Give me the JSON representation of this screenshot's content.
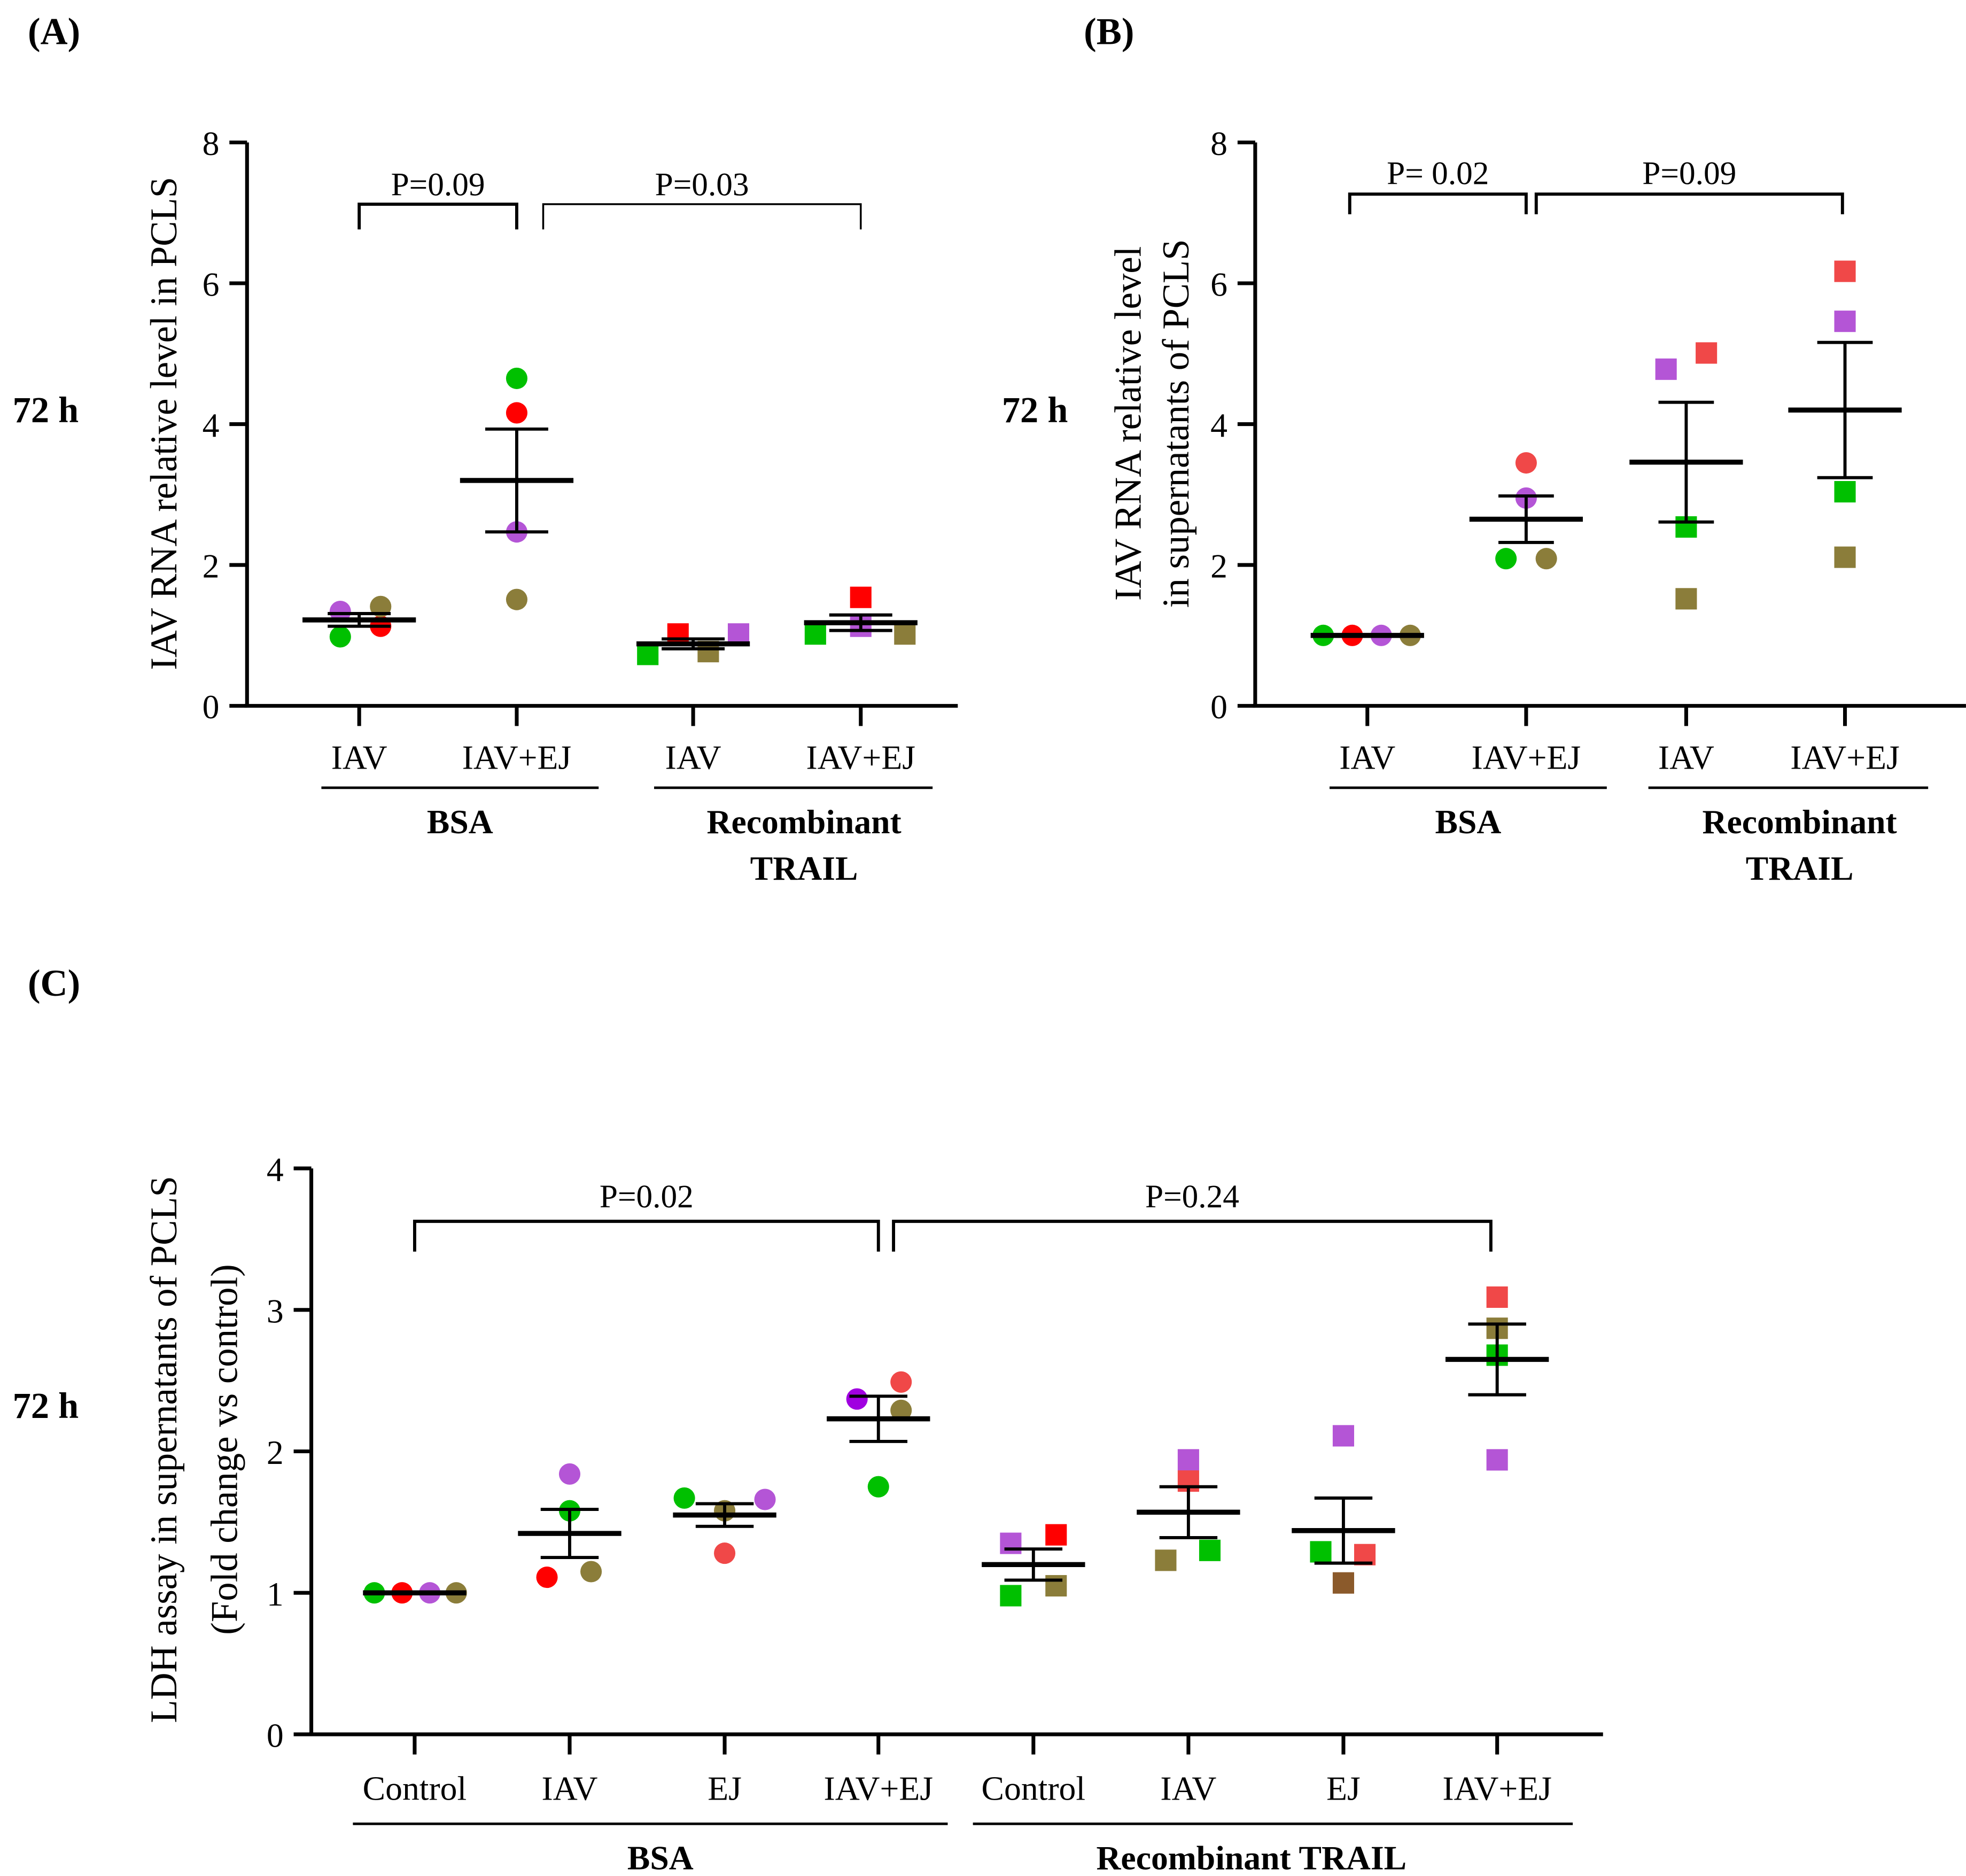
{
  "chart_data": [
    {
      "type": "scatter",
      "panel_label": "(A)",
      "time_label": "72 h",
      "ylabel": [
        "IAV RNA relative level in PCLS"
      ],
      "ylim": [
        0,
        8
      ],
      "yticks": [
        "0",
        "2",
        "4",
        "6",
        "8"
      ],
      "categories": [
        "IAV",
        "IAV+EJ",
        "IAV",
        "IAV+EJ"
      ],
      "treatment_groups": [
        {
          "label": [
            "BSA"
          ],
          "categories": [
            0,
            1
          ]
        },
        {
          "label": [
            "Recombinant",
            "TRAIL"
          ],
          "categories": [
            2,
            3
          ]
        }
      ],
      "comparisons": [
        {
          "label": "P=0.09",
          "from": 0,
          "to": 1
        },
        {
          "label": "P=0.03",
          "from": 1,
          "to": 3
        }
      ],
      "groups": [
        {
          "mean": 1.22,
          "sem": 0.09,
          "marker": "circle",
          "points": [
            {
              "value": 1.34,
              "color": "#b455d6"
            },
            {
              "value": 0.98,
              "color": "#00c000"
            },
            {
              "value": 1.13,
              "color": "#ff0000"
            },
            {
              "value": 1.41,
              "color": "#8b7d3a"
            }
          ]
        },
        {
          "mean": 3.2,
          "sem": 0.73,
          "marker": "circle",
          "points": [
            {
              "value": 4.65,
              "color": "#00c000"
            },
            {
              "value": 4.16,
              "color": "#ff0000"
            },
            {
              "value": 2.47,
              "color": "#b455d6"
            },
            {
              "value": 1.51,
              "color": "#8b7d3a"
            }
          ]
        },
        {
          "mean": 0.88,
          "sem": 0.07,
          "marker": "square",
          "points": [
            {
              "value": 0.73,
              "color": "#00c000"
            },
            {
              "value": 1.02,
              "color": "#ff0000"
            },
            {
              "value": 0.77,
              "color": "#8b7d3a"
            },
            {
              "value": 1.02,
              "color": "#b455d6"
            }
          ]
        },
        {
          "mean": 1.18,
          "sem": 0.11,
          "marker": "square",
          "points": [
            {
              "value": 1.02,
              "color": "#00c000"
            },
            {
              "value": 1.54,
              "color": "#ff0000"
            },
            {
              "value": 1.13,
              "color": "#b455d6"
            },
            {
              "value": 1.02,
              "color": "#8b7d3a"
            }
          ]
        }
      ]
    },
    {
      "type": "scatter",
      "panel_label": "(B)",
      "time_label": "72 h",
      "ylabel": [
        "IAV RNA relative level",
        "in supernatants of PCLS"
      ],
      "ylim": [
        0,
        8
      ],
      "yticks": [
        "0",
        "2",
        "4",
        "6",
        "8"
      ],
      "categories": [
        "IAV",
        "IAV+EJ",
        "IAV",
        "IAV+EJ"
      ],
      "treatment_groups": [
        {
          "label": [
            "BSA"
          ],
          "categories": [
            0,
            1
          ]
        },
        {
          "label": [
            "Recombinant",
            "TRAIL"
          ],
          "categories": [
            2,
            3
          ]
        }
      ],
      "comparisons": [
        {
          "label": "P= 0.02",
          "from": 0,
          "to": 1
        },
        {
          "label": "P=0.09",
          "from": 1,
          "to": 3
        }
      ],
      "groups": [
        {
          "mean": 1.0,
          "sem": 0.0,
          "marker": "circle",
          "points": [
            {
              "value": 1.0,
              "color": "#00c000"
            },
            {
              "value": 1.0,
              "color": "#ff0000"
            },
            {
              "value": 1.0,
              "color": "#b455d6"
            },
            {
              "value": 1.0,
              "color": "#8b7d3a"
            }
          ]
        },
        {
          "mean": 2.65,
          "sem": 0.33,
          "marker": "circle",
          "points": [
            {
              "value": 3.45,
              "color": "#f04848"
            },
            {
              "value": 2.95,
              "color": "#b455d6"
            },
            {
              "value": 2.09,
              "color": "#00c000"
            },
            {
              "value": 2.09,
              "color": "#8b7d3a"
            }
          ]
        },
        {
          "mean": 3.46,
          "sem": 0.85,
          "marker": "square",
          "points": [
            {
              "value": 4.78,
              "color": "#b455d6"
            },
            {
              "value": 5.01,
              "color": "#f04848"
            },
            {
              "value": 2.54,
              "color": "#00c000"
            },
            {
              "value": 1.52,
              "color": "#8b7d3a"
            }
          ]
        },
        {
          "mean": 4.2,
          "sem": 0.96,
          "marker": "square",
          "points": [
            {
              "value": 6.17,
              "color": "#f04848"
            },
            {
              "value": 5.46,
              "color": "#b455d6"
            },
            {
              "value": 3.04,
              "color": "#00c000"
            },
            {
              "value": 2.11,
              "color": "#8b7d3a"
            }
          ]
        }
      ]
    },
    {
      "type": "scatter",
      "panel_label": "(C)",
      "time_label": "72 h",
      "ylabel": [
        "LDH assay in supernatants of  PCLS",
        "(Fold change vs control)"
      ],
      "ylim": [
        0,
        4
      ],
      "yticks": [
        "0",
        "1",
        "2",
        "3",
        "4"
      ],
      "categories": [
        "Control",
        "IAV",
        "EJ",
        "IAV+EJ",
        "Control",
        "IAV",
        "EJ",
        "IAV+EJ"
      ],
      "treatment_groups": [
        {
          "label": [
            "BSA"
          ],
          "categories": [
            0,
            3
          ]
        },
        {
          "label": [
            "Recombinant TRAIL"
          ],
          "categories": [
            4,
            7
          ]
        }
      ],
      "comparisons": [
        {
          "label": "P=0.02",
          "from": 0,
          "to": 3
        },
        {
          "label": "P=0.24",
          "from": 3,
          "to": 7
        }
      ],
      "groups": [
        {
          "mean": 1.0,
          "sem": 0.0,
          "marker": "circle",
          "points": [
            {
              "value": 1.0,
              "color": "#00c000"
            },
            {
              "value": 1.0,
              "color": "#ff0000"
            },
            {
              "value": 1.0,
              "color": "#b455d6"
            },
            {
              "value": 1.0,
              "color": "#8b7d3a"
            }
          ]
        },
        {
          "mean": 1.42,
          "sem": 0.17,
          "marker": "circle",
          "points": [
            {
              "value": 1.84,
              "color": "#b455d6"
            },
            {
              "value": 1.58,
              "color": "#00c000"
            },
            {
              "value": 1.11,
              "color": "#ff0000"
            },
            {
              "value": 1.15,
              "color": "#8b7d3a"
            }
          ]
        },
        {
          "mean": 1.55,
          "sem": 0.08,
          "marker": "circle",
          "points": [
            {
              "value": 1.67,
              "color": "#00c000"
            },
            {
              "value": 1.58,
              "color": "#8b7d3a"
            },
            {
              "value": 1.66,
              "color": "#b455d6"
            },
            {
              "value": 1.28,
              "color": "#f04848"
            }
          ]
        },
        {
          "mean": 2.23,
          "sem": 0.16,
          "marker": "circle",
          "points": [
            {
              "value": 2.37,
              "color": "#a000e0"
            },
            {
              "value": 2.49,
              "color": "#f04848"
            },
            {
              "value": 2.29,
              "color": "#8b7d3a"
            },
            {
              "value": 1.75,
              "color": "#00c000"
            }
          ]
        },
        {
          "mean": 1.2,
          "sem": 0.11,
          "marker": "square",
          "points": [
            {
              "value": 1.35,
              "color": "#b455d6"
            },
            {
              "value": 1.41,
              "color": "#ff0000"
            },
            {
              "value": 0.98,
              "color": "#00c000"
            },
            {
              "value": 1.05,
              "color": "#8b7d3a"
            }
          ]
        },
        {
          "mean": 1.57,
          "sem": 0.18,
          "marker": "square",
          "points": [
            {
              "value": 1.94,
              "color": "#b455d6"
            },
            {
              "value": 1.79,
              "color": "#f04848"
            },
            {
              "value": 1.23,
              "color": "#8b7d3a"
            },
            {
              "value": 1.3,
              "color": "#00c000"
            }
          ]
        },
        {
          "mean": 1.44,
          "sem": 0.23,
          "marker": "square",
          "points": [
            {
              "value": 2.11,
              "color": "#b455d6"
            },
            {
              "value": 1.29,
              "color": "#00c000"
            },
            {
              "value": 1.27,
              "color": "#f04848"
            },
            {
              "value": 1.07,
              "color": "#8b5a2b"
            }
          ]
        },
        {
          "mean": 2.65,
          "sem": 0.25,
          "marker": "square",
          "points": [
            {
              "value": 3.09,
              "color": "#f04848"
            },
            {
              "value": 2.87,
              "color": "#8b7d3a"
            },
            {
              "value": 2.68,
              "color": "#00c000"
            },
            {
              "value": 1.94,
              "color": "#b455d6"
            }
          ]
        }
      ]
    }
  ]
}
